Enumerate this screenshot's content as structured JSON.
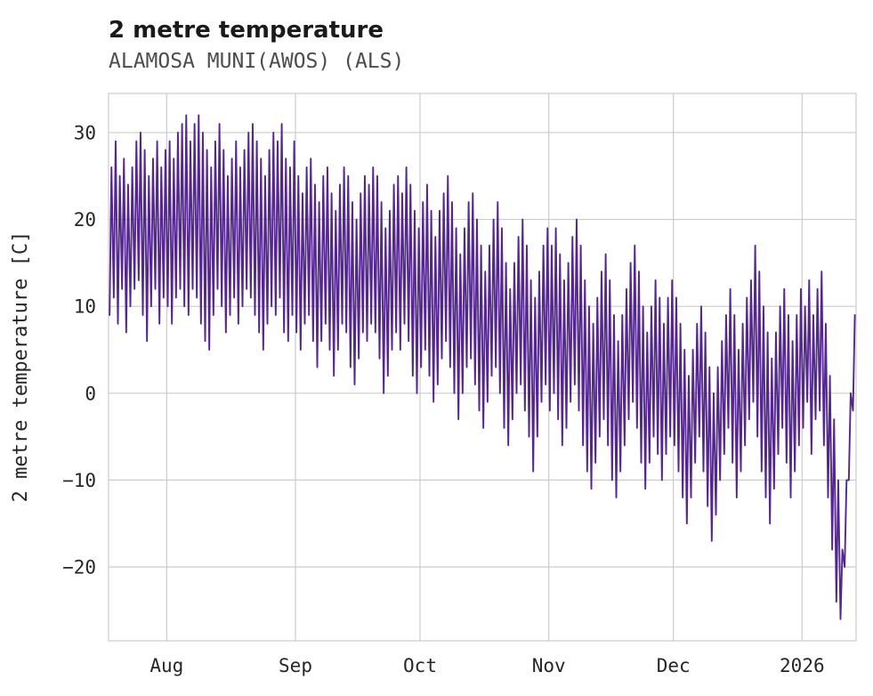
{
  "header": {
    "title": "2 metre temperature",
    "subtitle": "ALAMOSA MUNI(AWOS) (ALS)"
  },
  "chart_data": {
    "type": "line",
    "title": "2 metre temperature",
    "subtitle": "ALAMOSA MUNI(AWOS) (ALS)",
    "xlabel": "",
    "ylabel": "2 metre temperature [C]",
    "line_color": "#54278f",
    "grid": true,
    "grid_color": "#cccccc",
    "legend": "none",
    "ylim": [
      -28.5,
      34.5
    ],
    "x_range_days": [
      0,
      180
    ],
    "y_ticks": [
      30,
      20,
      10,
      0,
      -10,
      -20
    ],
    "y_tick_labels": [
      "30",
      "20",
      "10",
      "0",
      "−10",
      "−20"
    ],
    "x_ticks_days": [
      14,
      45,
      75,
      106,
      136,
      167
    ],
    "x_tick_labels": [
      "Aug",
      "Sep",
      "Oct",
      "Nov",
      "Dec",
      "2026"
    ],
    "series_description": "Daily minimum and maximum 2 m temperature (deg C), one pair per day from mid-July 2025 through mid-January 2026; plotted as a diurnal zigzag line.",
    "daily_max_c": [
      26,
      29,
      25,
      27,
      24,
      26,
      29,
      30,
      28,
      25,
      27,
      29,
      26,
      28,
      29,
      27,
      30,
      31,
      32,
      29,
      31,
      32,
      30,
      28,
      26,
      29,
      31,
      28,
      25,
      27,
      29,
      26,
      28,
      30,
      31,
      29,
      27,
      25,
      28,
      30,
      29,
      31,
      27,
      26,
      29,
      25,
      23,
      26,
      27,
      24,
      22,
      25,
      26,
      23,
      21,
      24,
      26,
      25,
      22,
      20,
      23,
      25,
      24,
      26,
      25,
      22,
      19,
      21,
      24,
      25,
      23,
      26,
      24,
      21,
      19,
      22,
      24,
      21,
      18,
      21,
      23,
      25,
      22,
      19,
      16,
      19,
      22,
      23,
      20,
      17,
      14,
      17,
      20,
      22,
      19,
      15,
      12,
      15,
      18,
      20,
      17,
      13,
      11,
      14,
      17,
      19,
      17,
      19,
      16,
      13,
      15,
      18,
      20,
      17,
      13,
      10,
      8,
      11,
      14,
      16,
      13,
      9,
      6,
      9,
      12,
      15,
      17,
      14,
      10,
      7,
      10,
      13,
      11,
      8,
      11,
      13,
      11,
      8,
      5,
      2,
      5,
      8,
      10,
      7,
      3,
      0,
      3,
      6,
      9,
      12,
      9,
      5,
      8,
      11,
      13,
      17,
      14,
      10,
      7,
      4,
      7,
      10,
      12,
      9,
      6,
      9,
      12,
      10,
      13,
      9,
      12,
      14,
      8,
      2,
      -3,
      -10,
      -18,
      -10,
      0,
      9
    ],
    "daily_min_c": [
      9,
      11,
      8,
      12,
      7,
      10,
      12,
      13,
      9,
      6,
      10,
      12,
      8,
      11,
      10,
      8,
      11,
      12,
      10,
      9,
      12,
      11,
      8,
      6,
      5,
      9,
      12,
      10,
      7,
      9,
      11,
      8,
      10,
      12,
      11,
      9,
      7,
      5,
      8,
      10,
      9,
      11,
      7,
      6,
      9,
      7,
      5,
      8,
      9,
      6,
      3,
      6,
      8,
      5,
      2,
      5,
      8,
      7,
      3,
      1,
      4,
      7,
      6,
      8,
      7,
      4,
      0,
      2,
      5,
      7,
      5,
      8,
      6,
      2,
      0,
      3,
      5,
      2,
      -1,
      1,
      4,
      6,
      3,
      0,
      -3,
      0,
      3,
      4,
      1,
      -2,
      -4,
      -1,
      2,
      3,
      0,
      -4,
      -6,
      -3,
      0,
      1,
      -2,
      -5,
      -9,
      -5,
      -1,
      1,
      -2,
      0,
      -3,
      -6,
      -4,
      -1,
      1,
      -2,
      -6,
      -9,
      -11,
      -8,
      -5,
      -3,
      -6,
      -10,
      -12,
      -9,
      -6,
      -3,
      -1,
      -4,
      -8,
      -11,
      -8,
      -5,
      -7,
      -10,
      -7,
      -5,
      -6,
      -9,
      -12,
      -15,
      -12,
      -8,
      -5,
      -9,
      -13,
      -17,
      -14,
      -10,
      -7,
      -4,
      -8,
      -12,
      -9,
      -6,
      -3,
      -1,
      -5,
      -9,
      -12,
      -15,
      -11,
      -7,
      -4,
      -8,
      -12,
      -9,
      -6,
      -4,
      -1,
      -7,
      -3,
      -2,
      -6,
      -12,
      -18,
      -24,
      -26,
      -20,
      -10,
      -2
    ]
  }
}
